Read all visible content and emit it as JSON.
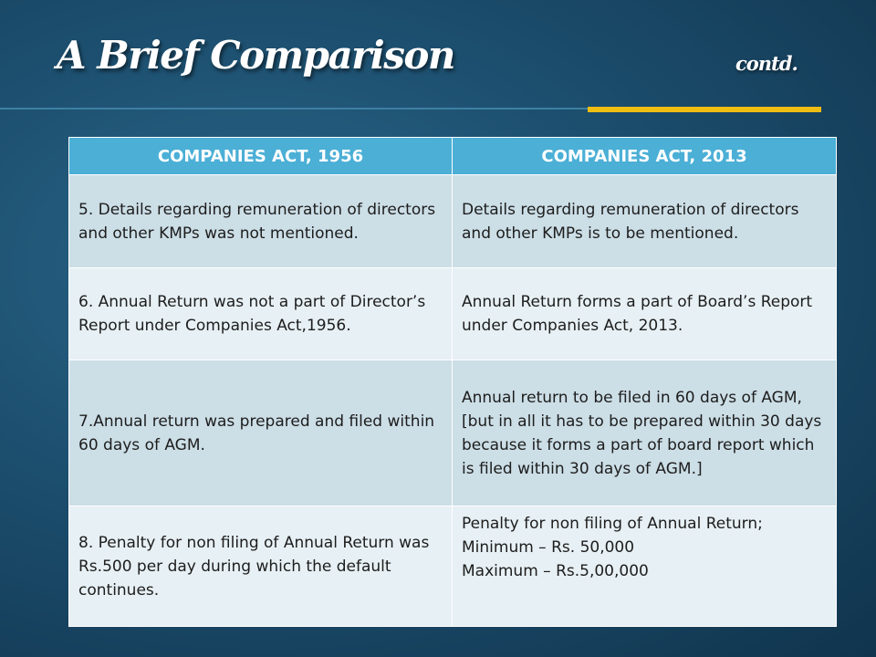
{
  "slide": {
    "title": "A Brief Comparison",
    "subtitle": "contd."
  },
  "table": {
    "headers": [
      "COMPANIES ACT, 1956",
      "COMPANIES ACT, 2013"
    ],
    "rows": [
      {
        "act_1956": "5. Details regarding remuneration of directors and other KMPs was not mentioned.",
        "act_2013": "Details regarding remuneration of directors and other KMPs is to be mentioned."
      },
      {
        "act_1956": "6. Annual Return was not a part of Director’s Report under Companies Act,1956.",
        "act_2013": "Annual Return forms a part of Board’s Report under Companies Act, 2013."
      },
      {
        "act_1956": "7.Annual return was prepared and filed within 60 days of AGM.",
        "act_2013": "Annual return to be filed in 60 days of AGM, [but in all it has to be prepared within 30 days because it forms a part of board report which is filed within 30 days of AGM.]"
      },
      {
        "act_1956": "8. Penalty for non filing of Annual Return was Rs.500 per day during which the default continues.",
        "act_2013_lines": [
          "Penalty for non filing of Annual Return;",
          "Minimum – Rs. 50,000",
          "Maximum – Rs.5,00,000"
        ]
      }
    ]
  },
  "colors": {
    "background": "#1c4e6e",
    "header": "#4bafd6",
    "row_alt": "#ccdee6",
    "row_light": "#e7f0f4",
    "accent": "#f0bd12"
  }
}
